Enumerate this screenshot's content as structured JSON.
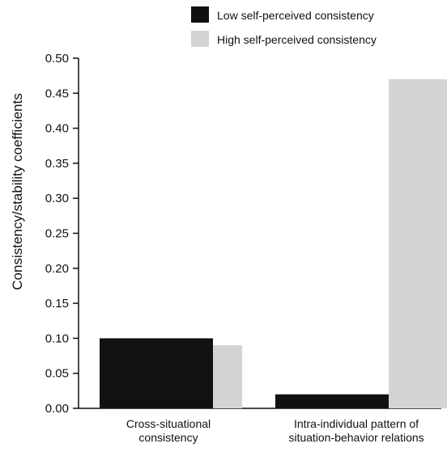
{
  "chart_data": {
    "type": "bar",
    "title": "",
    "xlabel": "",
    "ylabel": "Consistency/stability coefficients",
    "ylim": [
      0,
      0.5
    ],
    "yticks": [
      "0.00",
      "0.05",
      "0.10",
      "0.15",
      "0.20",
      "0.25",
      "0.30",
      "0.35",
      "0.40",
      "0.45",
      "0.50"
    ],
    "categories": [
      [
        "Cross-situational",
        "consistency"
      ],
      [
        "Intra-individual pattern of",
        "situation-behavior relations"
      ]
    ],
    "series": [
      {
        "name": "Low self-perceived consistency",
        "color": "#111111",
        "values": [
          0.1,
          0.02
        ]
      },
      {
        "name": "High self-perceived consistency",
        "color": "#d4d4d4",
        "values": [
          0.09,
          0.47
        ]
      }
    ],
    "legend_position": "top-right",
    "grid": false
  }
}
